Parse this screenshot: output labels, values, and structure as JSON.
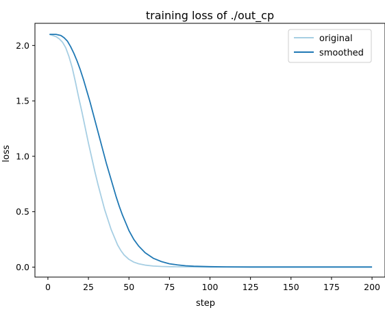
{
  "chart_data": {
    "type": "line",
    "title": "training loss of ./out_cp",
    "xlabel": "step",
    "ylabel": "loss",
    "xlim": [
      -8,
      208
    ],
    "ylim": [
      -0.09,
      2.2
    ],
    "xticks": [
      0,
      25,
      50,
      75,
      100,
      125,
      150,
      175,
      200
    ],
    "yticks": [
      0.0,
      0.5,
      1.0,
      1.5,
      2.0
    ],
    "ytick_labels": [
      "0.0",
      "0.5",
      "1.0",
      "1.5",
      "2.0"
    ],
    "grid": false,
    "legend_position": "top-right",
    "series": [
      {
        "name": "original",
        "color": "#a6cee3",
        "x": [
          1,
          3,
          5,
          7,
          9,
          11,
          13,
          15,
          17,
          19,
          21,
          23,
          25,
          27,
          29,
          31,
          33,
          35,
          37,
          39,
          41,
          43,
          45,
          47,
          50,
          53,
          56,
          60,
          65,
          70,
          75,
          80,
          90,
          100,
          125,
          150,
          175,
          200
        ],
        "y": [
          2.1,
          2.09,
          2.08,
          2.06,
          2.03,
          1.98,
          1.9,
          1.8,
          1.67,
          1.53,
          1.4,
          1.26,
          1.12,
          0.99,
          0.86,
          0.74,
          0.63,
          0.52,
          0.43,
          0.34,
          0.27,
          0.2,
          0.15,
          0.11,
          0.07,
          0.045,
          0.03,
          0.018,
          0.01,
          0.006,
          0.004,
          0.003,
          0.002,
          0.001,
          0.001,
          0.001,
          0.001,
          0.001
        ]
      },
      {
        "name": "smoothed",
        "color": "#1f78b4",
        "x": [
          1,
          5,
          8,
          10,
          12,
          14,
          16,
          18,
          20,
          22,
          24,
          26,
          28,
          30,
          32,
          34,
          36,
          38,
          40,
          42,
          44,
          46,
          48,
          50,
          53,
          56,
          60,
          65,
          70,
          75,
          80,
          85,
          90,
          100,
          110,
          125,
          150,
          175,
          200
        ],
        "y": [
          2.1,
          2.1,
          2.09,
          2.07,
          2.04,
          1.99,
          1.93,
          1.86,
          1.78,
          1.69,
          1.59,
          1.49,
          1.38,
          1.27,
          1.16,
          1.05,
          0.94,
          0.84,
          0.74,
          0.64,
          0.55,
          0.47,
          0.4,
          0.33,
          0.25,
          0.19,
          0.13,
          0.08,
          0.05,
          0.03,
          0.02,
          0.012,
          0.008,
          0.004,
          0.002,
          0.001,
          0.001,
          0.001,
          0.001
        ]
      }
    ]
  }
}
